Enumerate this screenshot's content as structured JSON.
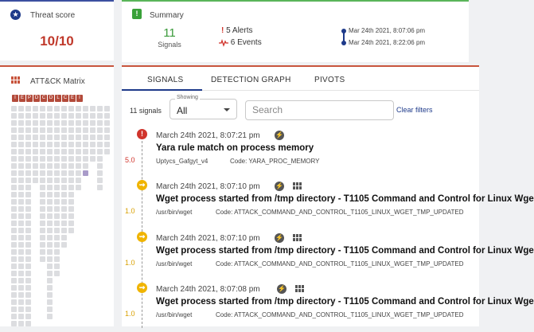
{
  "threat": {
    "title": "Threat score",
    "score": "10/10"
  },
  "summary": {
    "title": "Summary",
    "signals_count": "11",
    "signals_label": "Signals",
    "alerts": "5 Alerts",
    "events": "6 Events",
    "start_time": "Mar 24th 2021, 8:07:06 pm",
    "end_time": "Mar 24th 2021, 8:22:06 pm"
  },
  "matrix": {
    "title": "ATT&CK Matrix",
    "tactics": [
      "I",
      "E",
      "P",
      "D",
      "C",
      "D",
      "L",
      "C",
      "E",
      "I"
    ]
  },
  "tabs": [
    "SIGNALS",
    "DETECTION GRAPH",
    "PIVOTS"
  ],
  "filters": {
    "signal_count": "11 signals",
    "showing_label": "Showing",
    "showing_value": "All",
    "search_placeholder": "Search",
    "clear": "Clear filters"
  },
  "signals": [
    {
      "time": "March 24th 2021, 8:07:21 pm",
      "title": "Yara rule match on process memory",
      "source": "Uptycs_Gafgyt_v4",
      "code": "Code: YARA_PROC_MEMORY",
      "score": "5.0",
      "severity": "alert"
    },
    {
      "time": "March 24th 2021, 8:07:10 pm",
      "title": "Wget process started from /tmp directory - T1105 Command and Control for Linux Wge",
      "source": "/usr/bin/wget",
      "code": "Code: ATTACK_COMMAND_AND_CONTROL_T1105_LINUX_WGET_TMP_UPDATED",
      "score": "1.0",
      "severity": "event"
    },
    {
      "time": "March 24th 2021, 8:07:10 pm",
      "title": "Wget process started from /tmp directory - T1105 Command and Control for Linux Wge",
      "source": "/usr/bin/wget",
      "code": "Code: ATTACK_COMMAND_AND_CONTROL_T1105_LINUX_WGET_TMP_UPDATED",
      "score": "1.0",
      "severity": "event"
    },
    {
      "time": "March 24th 2021, 8:07:08 pm",
      "title": "Wget process started from /tmp directory - T1105 Command and Control for Linux Wge",
      "source": "/usr/bin/wget",
      "code": "Code: ATTACK_COMMAND_AND_CONTROL_T1105_LINUX_WGET_TMP_UPDATED",
      "score": "1.0",
      "severity": "event"
    }
  ],
  "colors": {
    "alert": "#d0342c",
    "event": "#f0b400",
    "accent": "#1e3a8a",
    "matrix_hit": "#a99bc9"
  }
}
